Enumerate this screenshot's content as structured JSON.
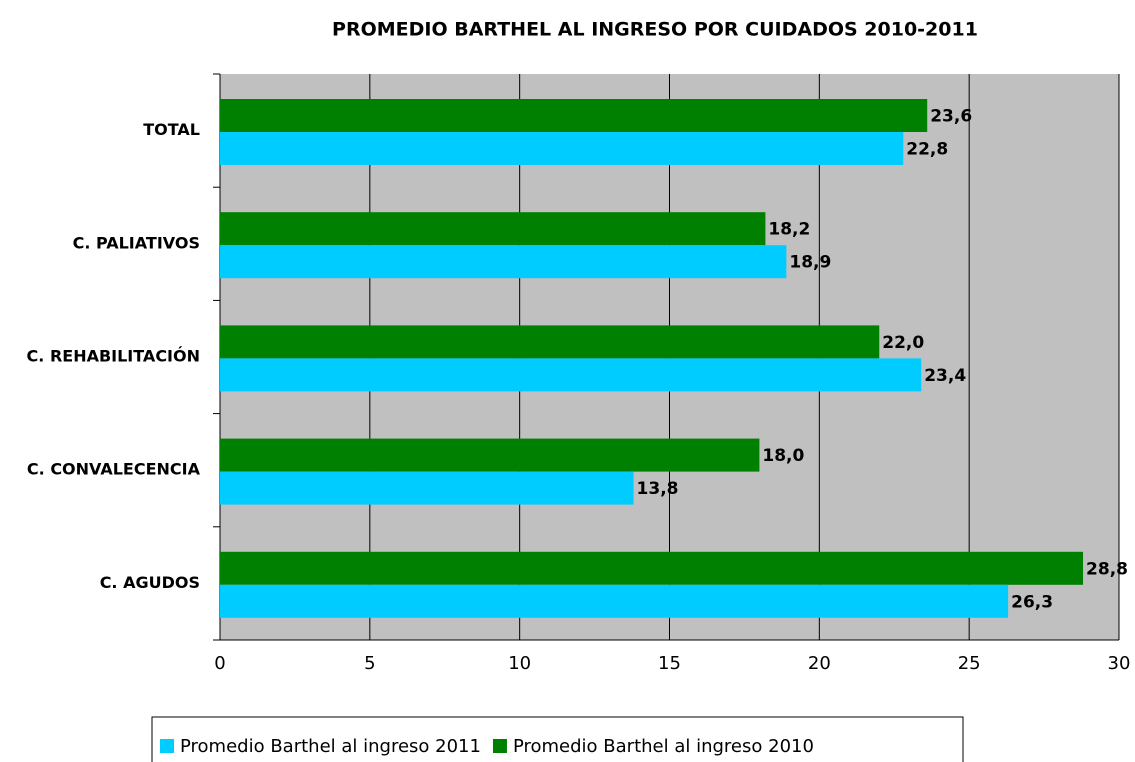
{
  "chart_data": {
    "type": "barh",
    "title": "PROMEDIO BARTHEL AL INGRESO POR CUIDADOS 2010-2011",
    "categories": [
      "TOTAL",
      "C. PALIATIVOS",
      "C. REHABILITACIÓN",
      "C. CONVALECENCIA",
      "C. AGUDOS"
    ],
    "series": [
      {
        "name": "Promedio Barthel al ingreso 2011",
        "color": "#00ccff",
        "values": [
          22.8,
          18.9,
          23.4,
          13.8,
          26.3
        ],
        "value_labels": [
          "22,8",
          "18,9",
          "23,4",
          "13,8",
          "26,3"
        ]
      },
      {
        "name": "Promedio Barthel al ingreso 2010",
        "color": "#008000",
        "values": [
          23.6,
          18.2,
          22.0,
          18.0,
          28.8
        ],
        "value_labels": [
          "23,6",
          "18,2",
          "22,0",
          "18,0",
          "28,8"
        ]
      }
    ],
    "xlim": [
      0,
      30
    ],
    "xticks": [
      0,
      5,
      10,
      15,
      20,
      25,
      30
    ],
    "grid": true,
    "legend": "bottom"
  }
}
